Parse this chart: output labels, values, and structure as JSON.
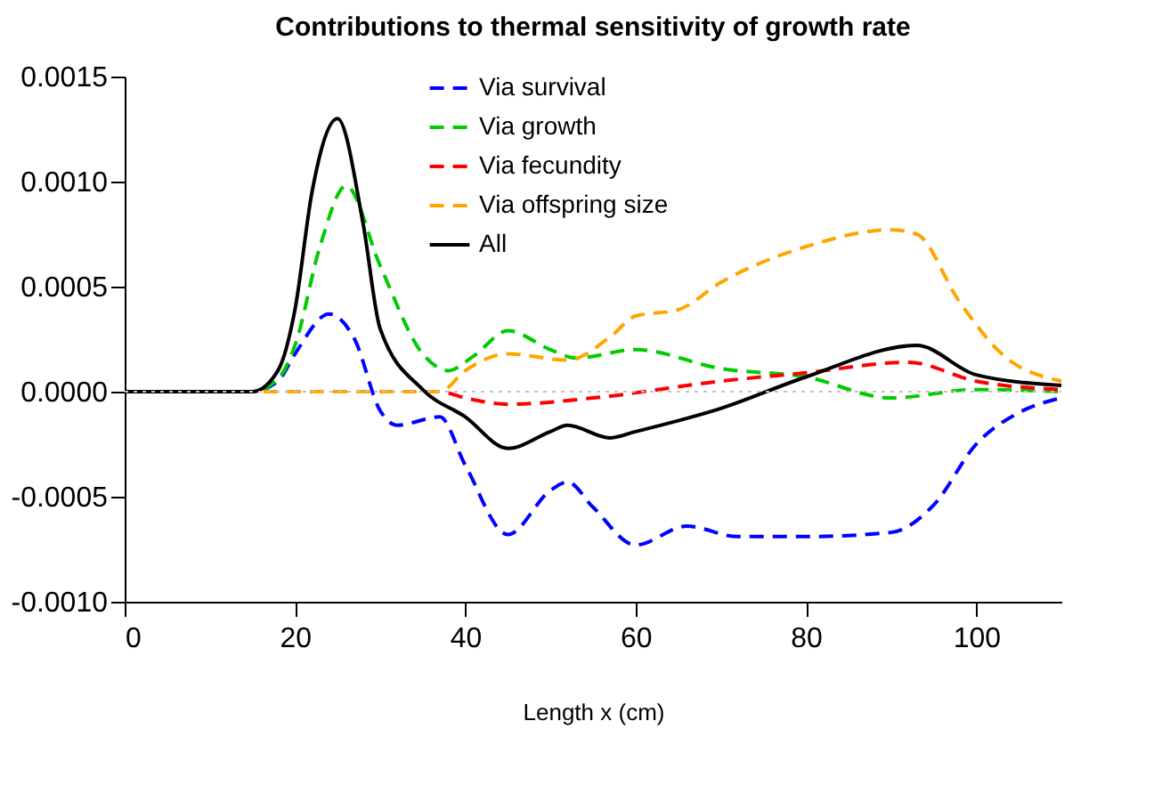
{
  "chart_data": {
    "type": "line",
    "title": "Contributions to thermal sensitivity of growth rate",
    "xlabel": "Length x (cm)",
    "xlim": [
      0,
      110
    ],
    "xticks": [
      0,
      20,
      40,
      60,
      80,
      100
    ],
    "ylim": [
      -0.001,
      0.0015
    ],
    "yticks": [
      {
        "value": -0.001,
        "label": "-0.0010"
      },
      {
        "value": -0.0005,
        "label": "-0.0005"
      },
      {
        "value": 0,
        "label": "0.0000"
      },
      {
        "value": 0.0005,
        "label": "0.0005"
      },
      {
        "value": 0.001,
        "label": "0.0010"
      },
      {
        "value": 0.0015,
        "label": "0.0015"
      }
    ],
    "grid": false,
    "legend": "top",
    "marker": "none",
    "ref_lines": [
      {
        "axis": "y",
        "value": 0,
        "label": null,
        "color": "#c0c0c0",
        "line_style": "dotted"
      }
    ],
    "series": [
      {
        "name": "Via survival",
        "color": "#0000ff",
        "line_style": "dashed",
        "x": [
          0,
          15,
          18,
          20,
          24,
          27,
          30,
          32,
          37,
          40,
          45,
          50,
          52,
          55,
          60,
          66,
          72,
          80,
          90,
          95,
          100,
          105,
          110
        ],
        "values": [
          0,
          0,
          5e-05,
          0.00018,
          0.00037,
          0.00025,
          -9e-05,
          -0.00016,
          -0.00012,
          -0.00035,
          -0.00068,
          -0.00047,
          -0.00043,
          -0.00055,
          -0.00073,
          -0.00064,
          -0.00069,
          -0.00069,
          -0.00067,
          -0.00054,
          -0.00025,
          -0.0001,
          -3e-05
        ]
      },
      {
        "name": "Via growth",
        "color": "#00cc00",
        "line_style": "dashed",
        "x": [
          0,
          15,
          18,
          20,
          23,
          26,
          30,
          35,
          38,
          41,
          45,
          50,
          53,
          60,
          70,
          80,
          90,
          100,
          110
        ],
        "values": [
          0,
          0,
          6e-05,
          0.00022,
          0.0007,
          0.00098,
          0.0006,
          0.00018,
          0.0001,
          0.00017,
          0.00029,
          0.0002,
          0.00016,
          0.0002,
          0.00011,
          7e-05,
          -3e-05,
          1e-05,
          0
        ]
      },
      {
        "name": "Via fecundity",
        "color": "#ff0000",
        "line_style": "dashed",
        "x": [
          0,
          37,
          40,
          45,
          55,
          70,
          80,
          92,
          100,
          110
        ],
        "values": [
          0,
          0,
          -3e-05,
          -6e-05,
          -3e-05,
          5e-05,
          9e-05,
          0.00014,
          5e-05,
          1e-05
        ]
      },
      {
        "name": "Via offspring size",
        "color": "#ffa500",
        "line_style": "dashed",
        "x": [
          0,
          37,
          40,
          45,
          52,
          57,
          60,
          65,
          70,
          80,
          90,
          93,
          98,
          103,
          110
        ],
        "values": [
          0,
          0,
          0.0001,
          0.00018,
          0.00015,
          0.00026,
          0.00036,
          0.00039,
          0.00052,
          0.00069,
          0.00077,
          0.00075,
          0.00043,
          0.00018,
          5e-05
        ]
      },
      {
        "name": "All",
        "color": "#000000",
        "line_style": "solid",
        "x": [
          0,
          15,
          18,
          20,
          22,
          25,
          28,
          30,
          35,
          40,
          45,
          50,
          52,
          57,
          60,
          70,
          80,
          93,
          100,
          110
        ],
        "values": [
          0,
          0,
          0.0001,
          0.00039,
          0.00095,
          0.0013,
          0.0008,
          0.0003,
          1e-05,
          -0.00012,
          -0.00027,
          -0.00019,
          -0.00016,
          -0.00022,
          -0.00019,
          -8e-05,
          7e-05,
          0.00022,
          8e-05,
          3e-05
        ]
      }
    ]
  }
}
